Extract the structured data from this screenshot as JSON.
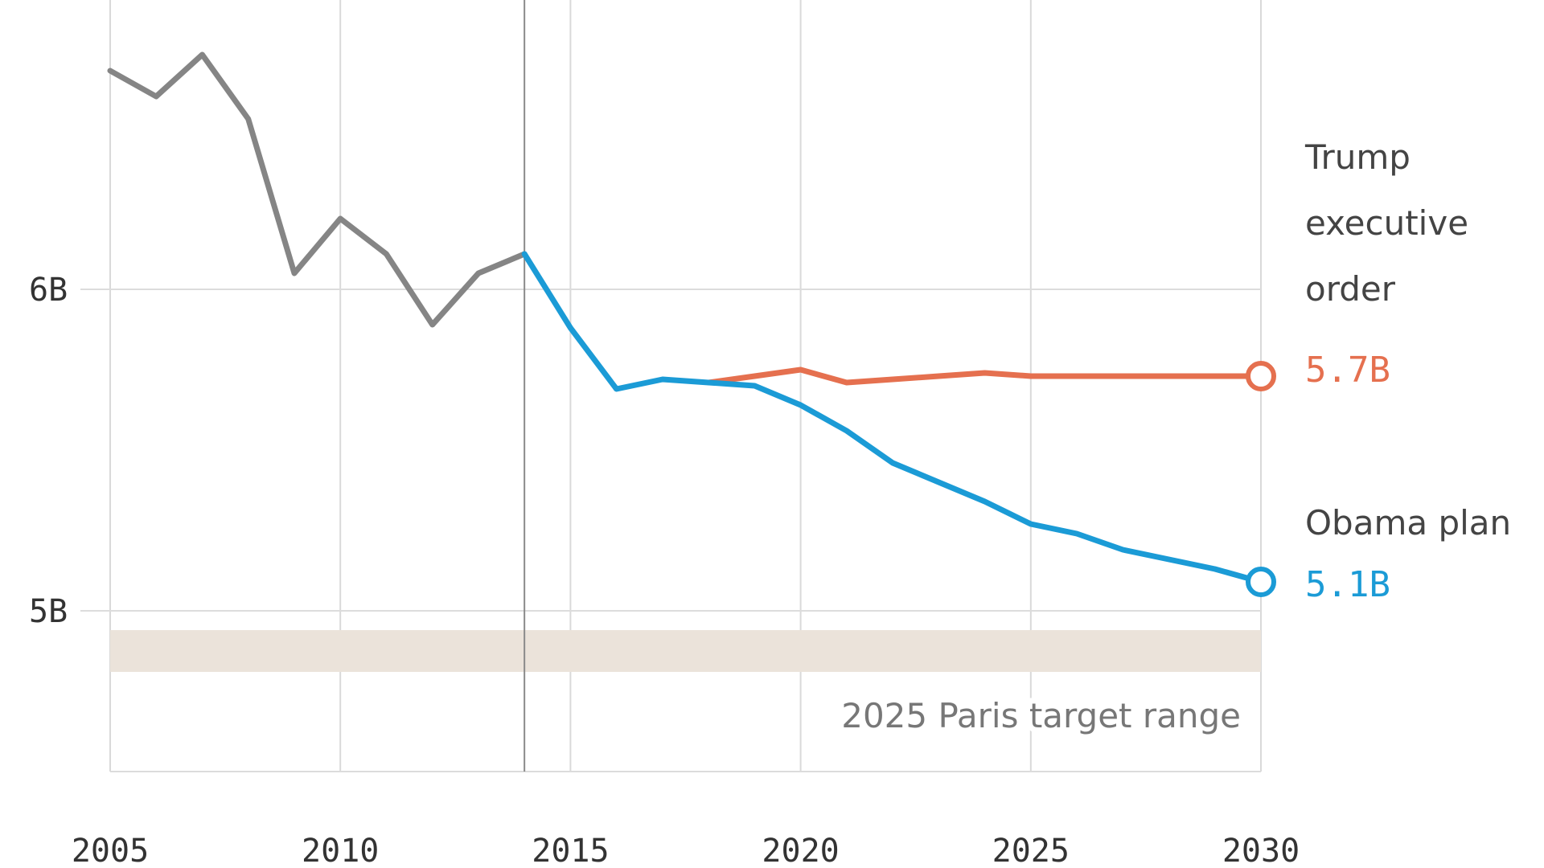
{
  "chart_data": {
    "type": "line",
    "title": "",
    "xlabel": "",
    "ylabel": "",
    "xlim": [
      2005,
      2030
    ],
    "ylim": [
      4.5,
      6.9
    ],
    "x_ticks": [
      2005,
      2010,
      2015,
      2020,
      2025,
      2030
    ],
    "x_tick_labels": [
      "2005",
      "2010",
      "2015",
      "2020",
      "2025",
      "2030"
    ],
    "y_ticks": [
      5.0,
      6.0
    ],
    "y_tick_labels": [
      "5B",
      "6B"
    ],
    "grid": true,
    "divider_year": 2014,
    "target_band": {
      "label": "2025 Paris target range",
      "y_range": [
        4.81,
        4.94
      ],
      "color": "#ebe3da"
    },
    "series": [
      {
        "key": "historical",
        "color": "#858585",
        "x": [
          2005,
          2006,
          2007,
          2008,
          2009,
          2010,
          2011,
          2012,
          2013,
          2014
        ],
        "values": [
          6.68,
          6.6,
          6.73,
          6.53,
          6.05,
          6.22,
          6.11,
          5.89,
          6.05,
          6.11
        ]
      },
      {
        "key": "trump",
        "name_lines": [
          "Trump",
          "executive",
          "order"
        ],
        "end_label": "5.7B",
        "color": "#e5704f",
        "x": [
          2018,
          2019,
          2020,
          2021,
          2022,
          2023,
          2024,
          2025,
          2026,
          2027,
          2028,
          2029,
          2030
        ],
        "values": [
          5.71,
          5.73,
          5.75,
          5.71,
          5.72,
          5.73,
          5.74,
          5.73,
          5.73,
          5.73,
          5.73,
          5.73,
          5.73
        ]
      },
      {
        "key": "obama",
        "name_lines": [
          "Obama plan"
        ],
        "end_label": "5.1B",
        "color": "#1b9bd6",
        "x": [
          2014,
          2015,
          2016,
          2017,
          2018,
          2019,
          2020,
          2021,
          2022,
          2023,
          2024,
          2025,
          2026,
          2027,
          2028,
          2029,
          2030
        ],
        "values": [
          6.11,
          5.88,
          5.69,
          5.72,
          5.71,
          5.7,
          5.64,
          5.56,
          5.46,
          5.4,
          5.34,
          5.27,
          5.24,
          5.19,
          5.16,
          5.13,
          5.09
        ]
      }
    ]
  }
}
